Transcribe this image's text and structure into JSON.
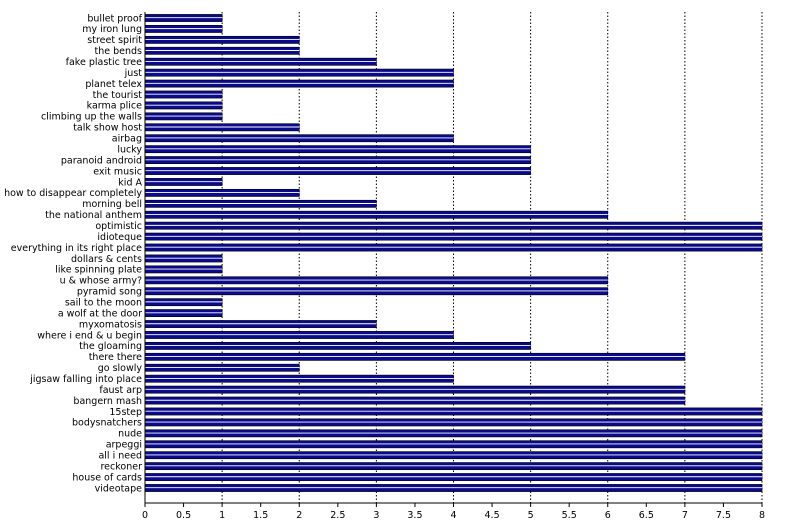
{
  "chart_data": {
    "type": "bar",
    "orientation": "horizontal",
    "title": "",
    "xlabel": "",
    "ylabel": "",
    "xlim": [
      0,
      8
    ],
    "x_ticks": [
      "0",
      "0.5",
      "1",
      "1.5",
      "2",
      "2.5",
      "3",
      "3.5",
      "4",
      "4.5",
      "5",
      "5.5",
      "6",
      "6.5",
      "7",
      "7.5",
      "8"
    ],
    "grid": "vertical dotted",
    "legend": "none",
    "bar_color": "#0a0a8c",
    "bar_stripe_color": "#ffffff",
    "categories": [
      "bullet proof",
      "my iron lung",
      "street spirit",
      "the bends",
      "fake plastic tree",
      "just",
      "planet telex",
      "the tourist",
      "karma plice",
      "climbing up the walls",
      "talk show host",
      "airbag",
      "lucky",
      "paranoid android",
      "exit music",
      "kid A",
      "how to disappear completely",
      "morning bell",
      "the national anthem",
      "optimistic",
      "idioteque",
      "everything in its right place",
      "dollars & cents",
      "like spinning plate",
      "u & whose army?",
      "pyramid song",
      "sail to the moon",
      "a wolf at the door",
      "myxomatosis",
      "where i end & u begin",
      "the gloaming",
      "there there",
      "go slowly",
      "jigsaw falling into place",
      "faust arp",
      "bangern mash",
      "15step",
      "bodysnatchers",
      "nude",
      "arpeggi",
      "all i need",
      "reckoner",
      "house of cards",
      "videotape"
    ],
    "values": [
      1,
      1,
      2,
      2,
      3,
      4,
      4,
      1,
      1,
      1,
      2,
      4,
      5,
      5,
      5,
      1,
      2,
      3,
      6,
      8,
      8,
      8,
      1,
      1,
      6,
      6,
      1,
      1,
      3,
      4,
      5,
      7,
      2,
      4,
      7,
      7,
      8,
      8,
      8,
      8,
      8,
      8,
      8,
      8
    ]
  }
}
